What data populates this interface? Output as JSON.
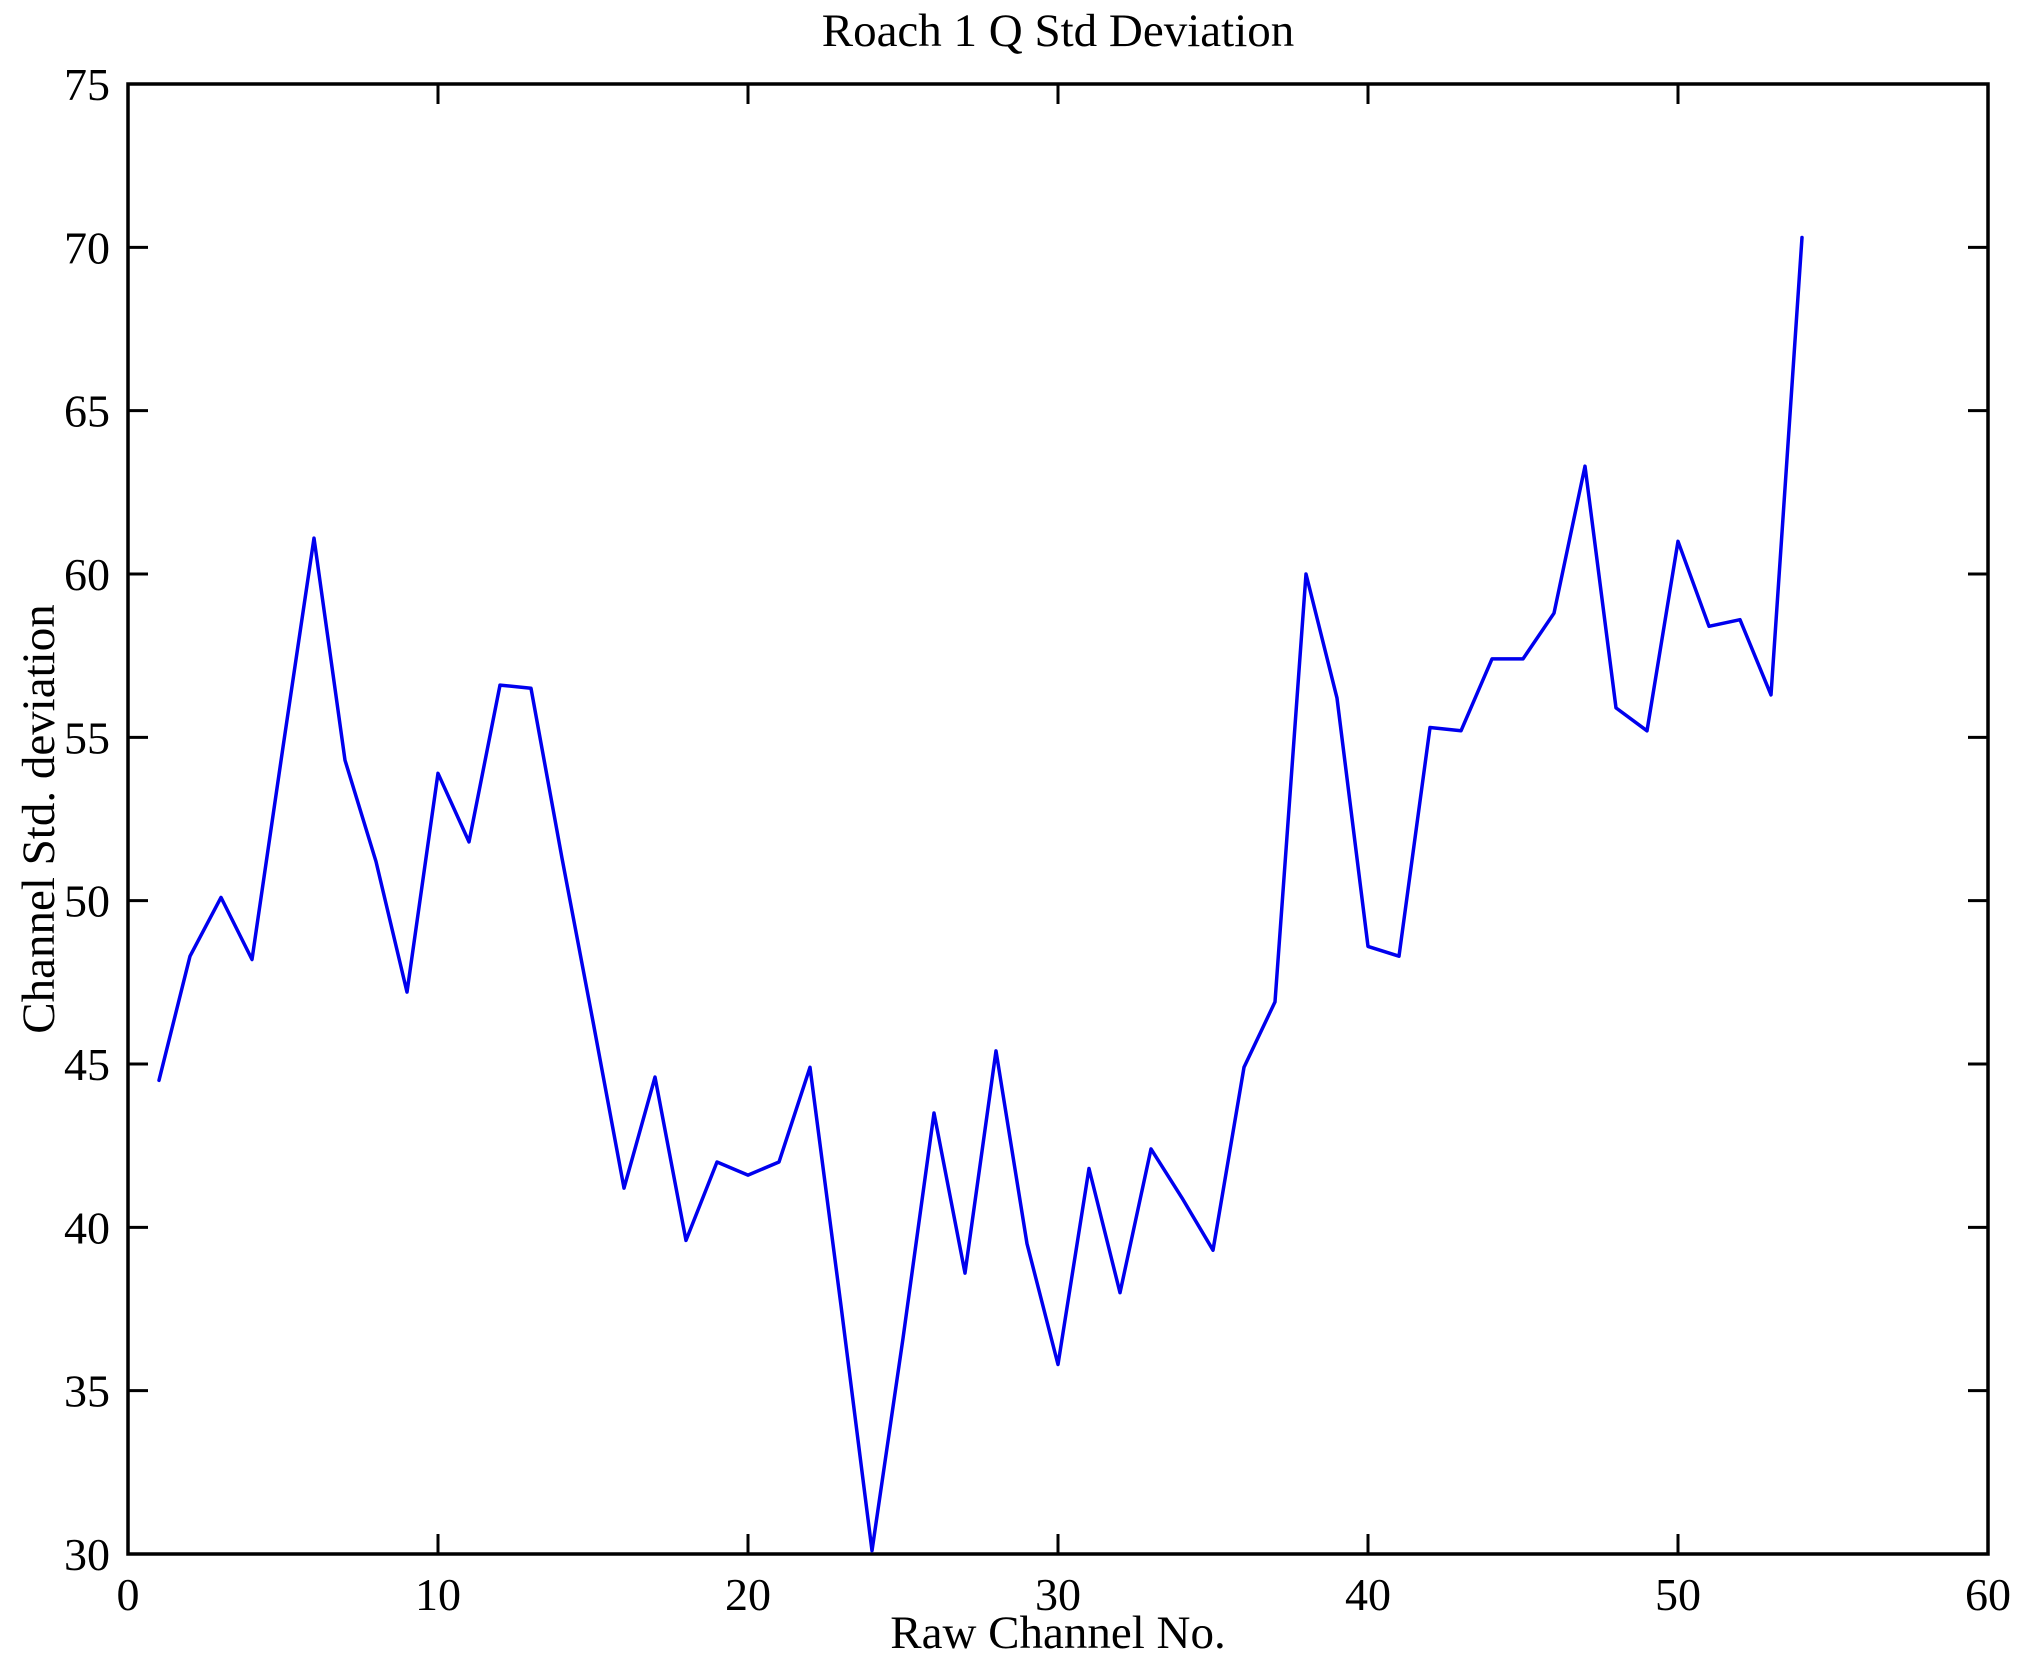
{
  "figure": {
    "title": "Roach 1 Q Std Deviation",
    "xlabel": "Raw Channel No.",
    "ylabel": "Channel Std. deviation"
  },
  "chart_data": {
    "type": "line",
    "title": "Roach 1 Q Std Deviation",
    "xlabel": "Raw Channel No.",
    "ylabel": "Channel Std. deviation",
    "legend": null,
    "grid": false,
    "line_color": "#0000ee",
    "axis_color": "#000000",
    "xlim": [
      0,
      60
    ],
    "ylim": [
      30,
      75
    ],
    "xticks": [
      0,
      10,
      20,
      30,
      40,
      50,
      60
    ],
    "yticks": [
      30,
      35,
      40,
      45,
      50,
      55,
      60,
      65,
      70,
      75
    ],
    "x": [
      1,
      2,
      3,
      4,
      5,
      6,
      7,
      8,
      9,
      10,
      11,
      12,
      13,
      14,
      15,
      16,
      17,
      18,
      19,
      20,
      21,
      22,
      23,
      24,
      25,
      26,
      27,
      28,
      29,
      30,
      31,
      32,
      33,
      34,
      35,
      36,
      37,
      38,
      39,
      40,
      41,
      42,
      43,
      44,
      45,
      46,
      47,
      48,
      49,
      50,
      51,
      52,
      53,
      54
    ],
    "y": [
      44.5,
      48.3,
      50.1,
      48.2,
      54.7,
      61.1,
      54.3,
      51.2,
      47.2,
      53.9,
      51.8,
      56.6,
      56.5,
      51.3,
      46.3,
      41.2,
      44.6,
      39.6,
      42.0,
      41.6,
      42.0,
      44.9,
      37.6,
      30.1,
      36.6,
      43.5,
      38.6,
      45.4,
      39.5,
      35.8,
      41.8,
      38.0,
      42.4,
      40.9,
      39.3,
      44.9,
      46.9,
      60.0,
      56.2,
      48.6,
      48.3,
      55.3,
      55.2,
      57.4,
      57.4,
      58.8,
      63.3,
      55.9,
      55.2,
      61.0,
      58.4,
      58.6,
      56.3,
      70.3
    ]
  }
}
